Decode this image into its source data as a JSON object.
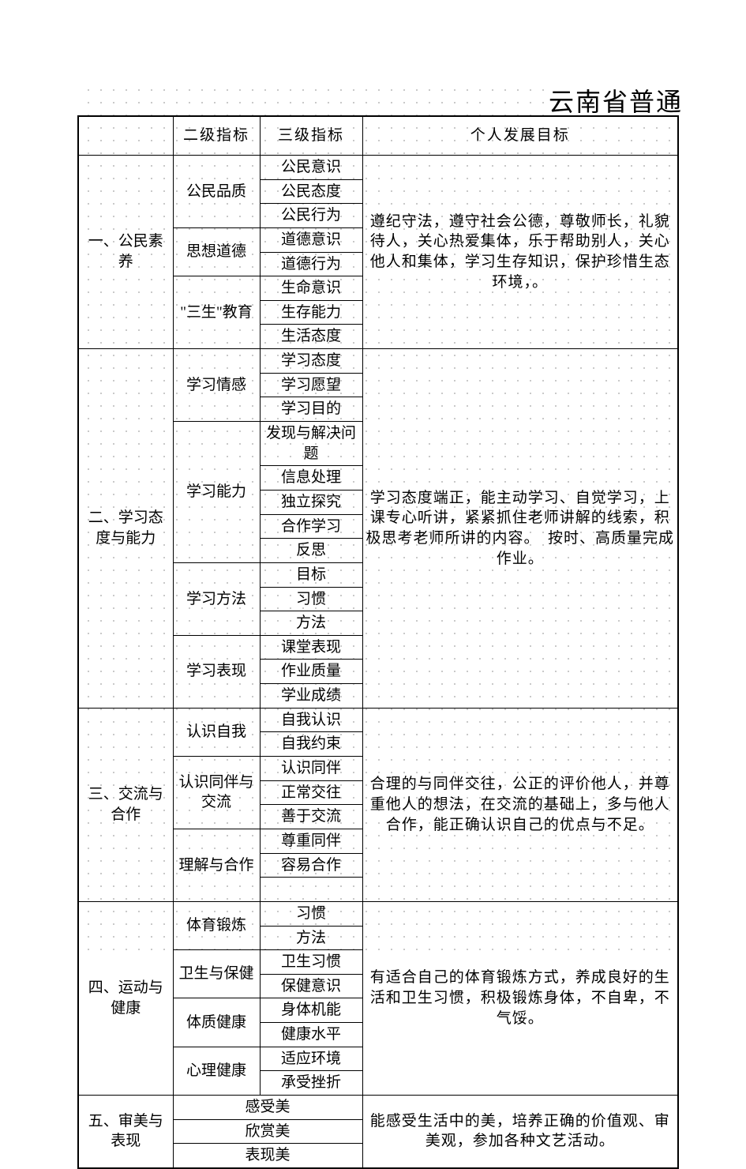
{
  "title": "云南省普通",
  "headers": {
    "c1": "",
    "c2": "二级指标",
    "c3": "三级指标",
    "c4": "个人发展目标"
  },
  "s1": {
    "label": "一、公民素养",
    "l2_1": "公民品质",
    "l2_2": "思想道德",
    "l2_3": "\"三生\"教育",
    "l3_1": "公民意识",
    "l3_2": "公民态度",
    "l3_3": "公民行为",
    "l3_4": "道德意识",
    "l3_5": "道德行为",
    "l3_6": "生命意识",
    "l3_7": "生存能力",
    "l3_8": "生活态度",
    "goal": "遵纪守法，遵守社会公德，尊敬师长，礼貌待人，关心热爱集体，乐于帮助别人，关心他人和集体，学习生存知识，保护珍惜生态环境，。"
  },
  "s2": {
    "label": "二、学习态度与能力",
    "l2_1": "学习情感",
    "l2_2": "学习能力",
    "l2_3": "学习方法",
    "l2_4": "学习表现",
    "l3_1": "学习态度",
    "l3_2": "学习愿望",
    "l3_3": "学习目的",
    "l3_4": "发现与解决问题",
    "l3_5": "信息处理",
    "l3_6": "独立探究",
    "l3_7": "合作学习",
    "l3_8": "反思",
    "l3_9": "目标",
    "l3_10": "习惯",
    "l3_11": "方法",
    "l3_12": "课堂表现",
    "l3_13": "作业质量",
    "l3_14": "学业成绩",
    "goal": "学习态度端正，能主动学习、自觉学习，上课专心听讲，紧紧抓住老师讲解的线索，积极思考老师所讲的内容。　按时、高质量完成作业。"
  },
  "s3": {
    "label": "三、交流与合作",
    "l2_1": "认识自我",
    "l2_2": "认识同伴与交流",
    "l2_3": "理解与合作",
    "l3_1": "自我认识",
    "l3_2": "自我约束",
    "l3_3": "认识同伴",
    "l3_4": "正常交往",
    "l3_5": "善于交流",
    "l3_6": "尊重同伴",
    "l3_7": "容易合作",
    "goal": "合理的与同伴交往，公正的评价他人，并尊重他人的想法，在交流的基础上，多与他人合作，能正确认识自己的优点与不足。"
  },
  "s4": {
    "label": "四、运动与健康",
    "l2_1": "体育锻炼",
    "l2_2": "卫生与保健",
    "l2_3": "体质健康",
    "l2_4": "心理健康",
    "l3_1": "习惯",
    "l3_2": "方法",
    "l3_3": "卫生习惯",
    "l3_4": "保健意识",
    "l3_5": "身体机能",
    "l3_6": "健康水平",
    "l3_7": "适应环境",
    "l3_8": "承受挫折",
    "goal": "有适合自己的体育锻炼方式，养成良好的生活和卫生习惯，积极锻炼身体，不自卑，不气馁。"
  },
  "s5": {
    "label": "五、审美与表现",
    "l2_1": "感受美",
    "l2_2": "欣赏美",
    "l2_3": "表现美",
    "goal": "能感受生活中的美，培养正确的价值观、审美观，参加各种文艺活动。"
  }
}
